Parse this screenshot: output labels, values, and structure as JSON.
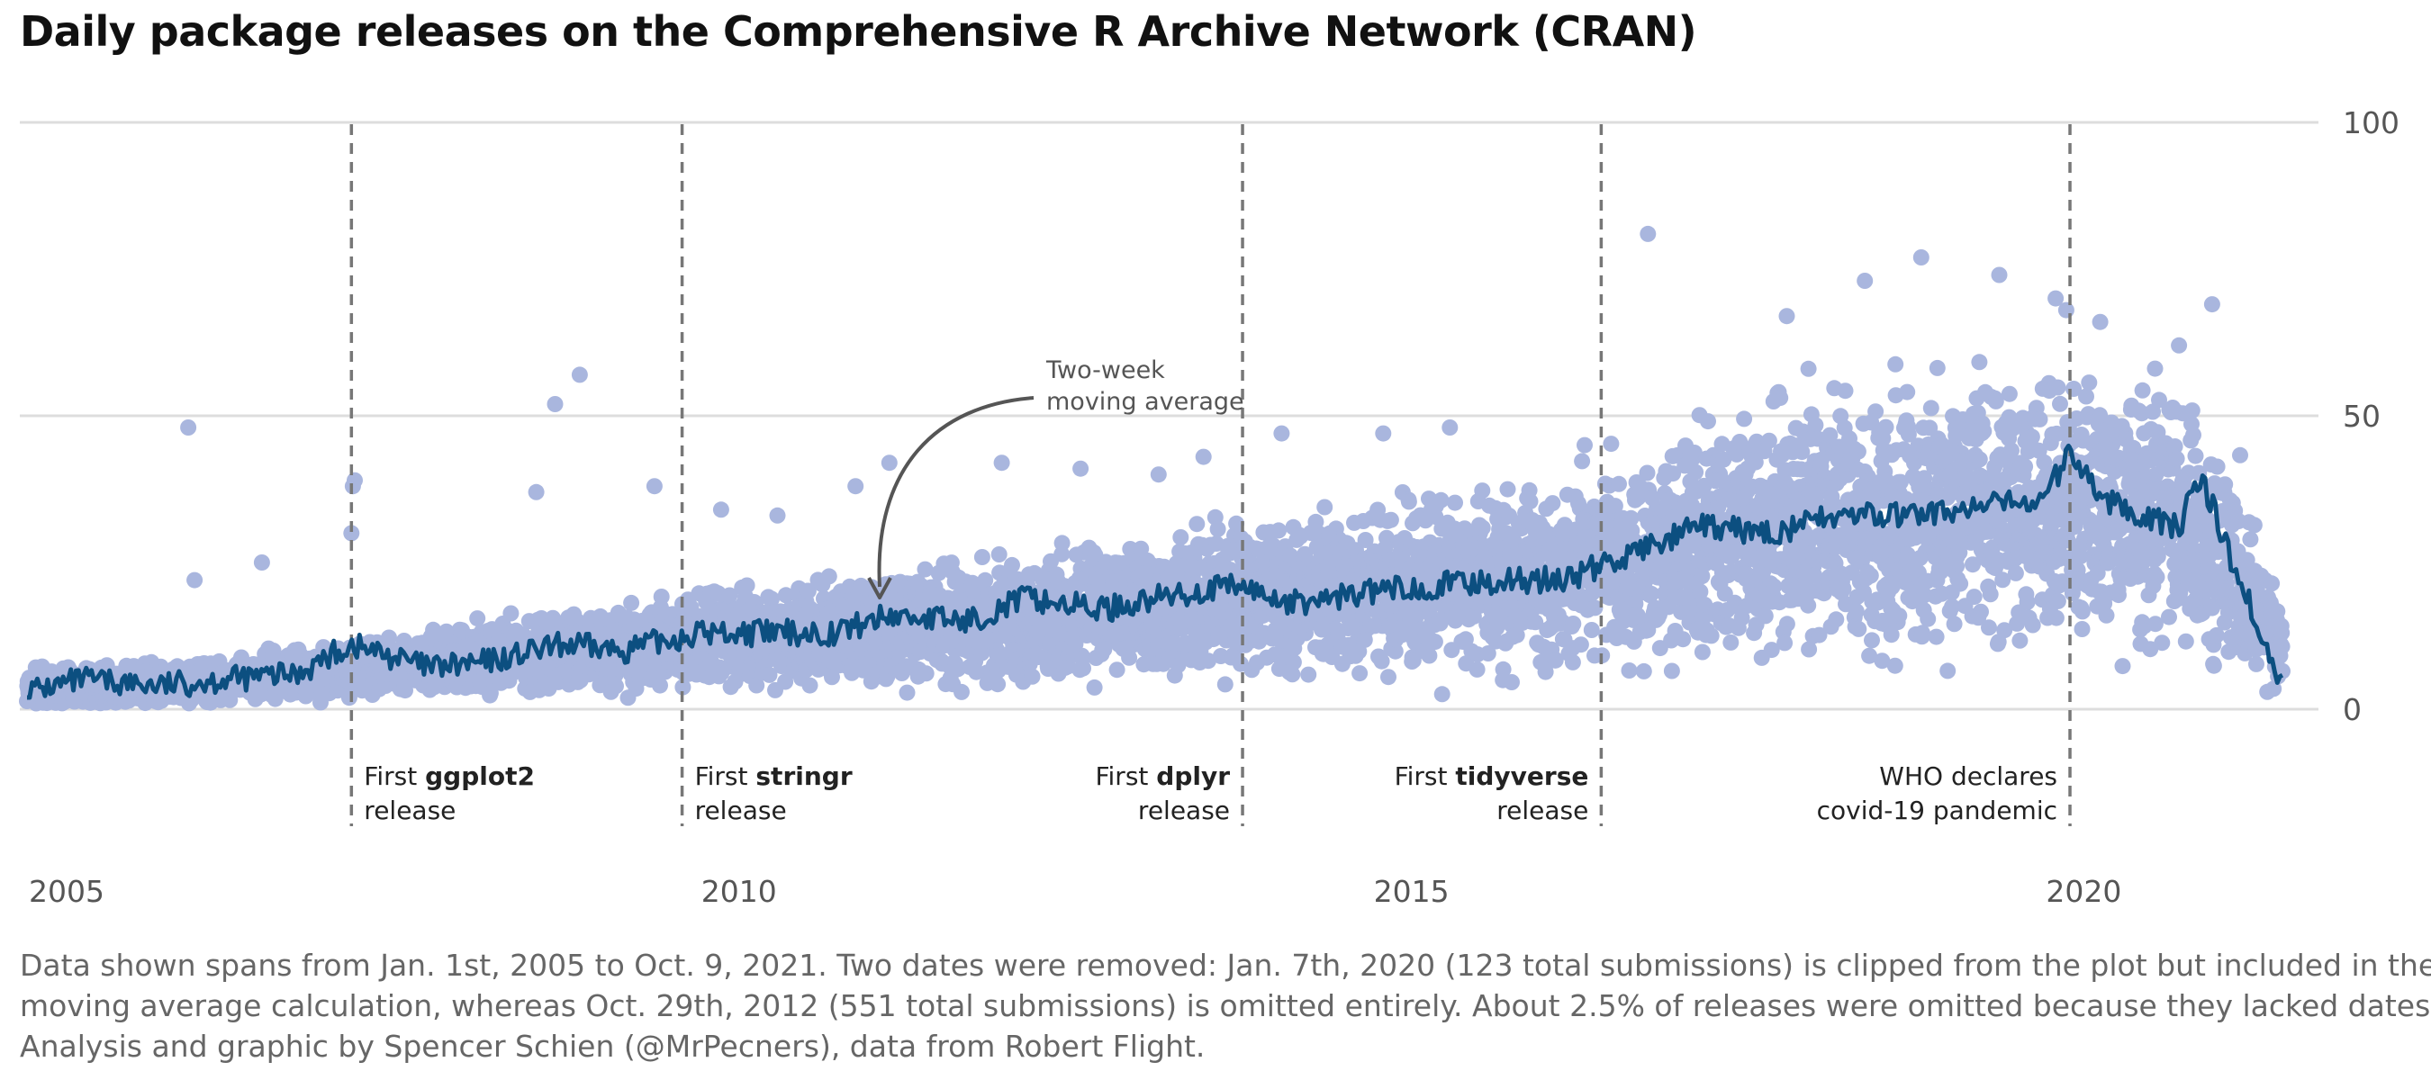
{
  "chart_data": {
    "type": "scatter",
    "title": "Daily package releases on the Comprehensive R Archive Network (CRAN)",
    "xlabel": "",
    "ylabel": "",
    "x_range": [
      "2005-01-01",
      "2021-10-09"
    ],
    "x_ticks": [
      "2005",
      "2010",
      "2015",
      "2020"
    ],
    "ylim": [
      0,
      100
    ],
    "y_ticks": [
      "0",
      "50",
      "100"
    ],
    "grid": "horizontal",
    "colors": {
      "points": "#a9b6de",
      "moving_average": "#0c4f80",
      "event_lines": "#777777",
      "grid": "#dddddd"
    },
    "series": [
      {
        "kind": "points",
        "description": "daily releases",
        "trend": [
          {
            "x": "2005-01-01",
            "y": 3
          },
          {
            "x": "2006-01-01",
            "y": 4
          },
          {
            "x": "2007-01-01",
            "y": 6
          },
          {
            "x": "2008-01-01",
            "y": 8
          },
          {
            "x": "2009-01-01",
            "y": 10
          },
          {
            "x": "2010-01-01",
            "y": 12
          },
          {
            "x": "2011-01-01",
            "y": 13
          },
          {
            "x": "2012-01-01",
            "y": 15
          },
          {
            "x": "2013-01-01",
            "y": 17
          },
          {
            "x": "2014-01-01",
            "y": 19
          },
          {
            "x": "2015-01-01",
            "y": 20
          },
          {
            "x": "2016-01-01",
            "y": 22
          },
          {
            "x": "2017-01-01",
            "y": 26
          },
          {
            "x": "2018-01-01",
            "y": 31
          },
          {
            "x": "2019-01-01",
            "y": 33
          },
          {
            "x": "2020-01-01",
            "y": 35
          },
          {
            "x": "2021-01-01",
            "y": 33
          },
          {
            "x": "2021-06-01",
            "y": 24
          },
          {
            "x": "2021-10-09",
            "y": 10
          }
        ],
        "outliers": [
          {
            "x": "2006-03-15",
            "y": 48
          },
          {
            "x": "2006-04-01",
            "y": 22
          },
          {
            "x": "2006-10-01",
            "y": 25
          },
          {
            "x": "2007-06-10",
            "y": 39
          },
          {
            "x": "2007-06-05",
            "y": 38
          },
          {
            "x": "2007-06-01",
            "y": 30
          },
          {
            "x": "2008-10-15",
            "y": 37
          },
          {
            "x": "2008-12-05",
            "y": 52
          },
          {
            "x": "2009-02-10",
            "y": 57
          },
          {
            "x": "2009-09-01",
            "y": 38
          },
          {
            "x": "2010-03-01",
            "y": 34
          },
          {
            "x": "2010-08-01",
            "y": 33
          },
          {
            "x": "2011-03-01",
            "y": 38
          },
          {
            "x": "2011-06-01",
            "y": 42
          },
          {
            "x": "2012-04-01",
            "y": 42
          },
          {
            "x": "2012-11-01",
            "y": 41
          },
          {
            "x": "2013-06-01",
            "y": 40
          },
          {
            "x": "2013-10-01",
            "y": 43
          },
          {
            "x": "2014-05-01",
            "y": 47
          },
          {
            "x": "2015-02-01",
            "y": 47
          },
          {
            "x": "2015-08-01",
            "y": 48
          },
          {
            "x": "2016-08-01",
            "y": 45
          },
          {
            "x": "2017-01-20",
            "y": 81
          },
          {
            "x": "2018-02-01",
            "y": 67
          },
          {
            "x": "2018-04-01",
            "y": 58
          },
          {
            "x": "2018-09-01",
            "y": 73
          },
          {
            "x": "2019-02-01",
            "y": 77
          },
          {
            "x": "2019-09-01",
            "y": 74
          },
          {
            "x": "2020-02-01",
            "y": 70
          },
          {
            "x": "2020-03-01",
            "y": 68
          },
          {
            "x": "2020-06-01",
            "y": 66
          },
          {
            "x": "2021-01-01",
            "y": 62
          },
          {
            "x": "2021-04-01",
            "y": 69
          }
        ]
      },
      {
        "kind": "line",
        "name": "Two-week moving average",
        "points": [
          {
            "x": "2005-01-01",
            "y": 3
          },
          {
            "x": "2005-06-01",
            "y": 5
          },
          {
            "x": "2006-01-01",
            "y": 4
          },
          {
            "x": "2006-06-01",
            "y": 5
          },
          {
            "x": "2007-01-01",
            "y": 6
          },
          {
            "x": "2007-06-01",
            "y": 11
          },
          {
            "x": "2008-01-01",
            "y": 7
          },
          {
            "x": "2008-06-01",
            "y": 8
          },
          {
            "x": "2009-01-01",
            "y": 11
          },
          {
            "x": "2009-06-01",
            "y": 10
          },
          {
            "x": "2010-01-01",
            "y": 13
          },
          {
            "x": "2010-06-01",
            "y": 13
          },
          {
            "x": "2011-01-01",
            "y": 13
          },
          {
            "x": "2011-06-01",
            "y": 16
          },
          {
            "x": "2012-01-01",
            "y": 15
          },
          {
            "x": "2012-06-01",
            "y": 19
          },
          {
            "x": "2013-01-01",
            "y": 17
          },
          {
            "x": "2013-06-01",
            "y": 19
          },
          {
            "x": "2014-01-01",
            "y": 21
          },
          {
            "x": "2014-06-01",
            "y": 18
          },
          {
            "x": "2015-01-01",
            "y": 20
          },
          {
            "x": "2015-06-01",
            "y": 21
          },
          {
            "x": "2016-01-01",
            "y": 22
          },
          {
            "x": "2016-06-01",
            "y": 22
          },
          {
            "x": "2017-01-01",
            "y": 27
          },
          {
            "x": "2017-06-01",
            "y": 31
          },
          {
            "x": "2018-01-01",
            "y": 30
          },
          {
            "x": "2018-06-01",
            "y": 33
          },
          {
            "x": "2019-01-01",
            "y": 33
          },
          {
            "x": "2019-06-01",
            "y": 34
          },
          {
            "x": "2020-01-01",
            "y": 36
          },
          {
            "x": "2020-03-15",
            "y": 44
          },
          {
            "x": "2020-06-01",
            "y": 36
          },
          {
            "x": "2021-01-01",
            "y": 31
          },
          {
            "x": "2021-03-01",
            "y": 40
          },
          {
            "x": "2021-06-01",
            "y": 24
          },
          {
            "x": "2021-10-09",
            "y": 4
          }
        ]
      }
    ],
    "annotations": [
      {
        "date": "2007-06-01",
        "prefix": "First ",
        "bold": "ggplot2",
        "line2": "release",
        "align": "left"
      },
      {
        "date": "2009-11-15",
        "prefix": "First ",
        "bold": "stringr",
        "line2": "release",
        "align": "left"
      },
      {
        "date": "2014-01-15",
        "prefix": "First ",
        "bold": "dplyr",
        "line2": "release",
        "align": "right"
      },
      {
        "date": "2016-09-15",
        "prefix": "First ",
        "bold": "tidyverse",
        "line2": "release",
        "align": "right"
      },
      {
        "date": "2020-03-11",
        "prefix": "",
        "bold": "",
        "line1": "WHO declares",
        "line2": "covid-19 pandemic",
        "align": "right"
      }
    ],
    "moving_average_label": [
      "Two-week",
      "moving average"
    ]
  },
  "caption": [
    "Data shown spans from Jan. 1st, 2005 to Oct. 9, 2021. Two dates were removed: Jan. 7th, 2020 (123 total submissions) is clipped from the plot but included in the",
    "moving average calculation, whereas Oct. 29th, 2012 (551 total submissions) is omitted entirely. About 2.5% of releases were omitted because they lacked dates.",
    "Analysis and graphic by Spencer Schien (@MrPecners), data from Robert Flight."
  ]
}
